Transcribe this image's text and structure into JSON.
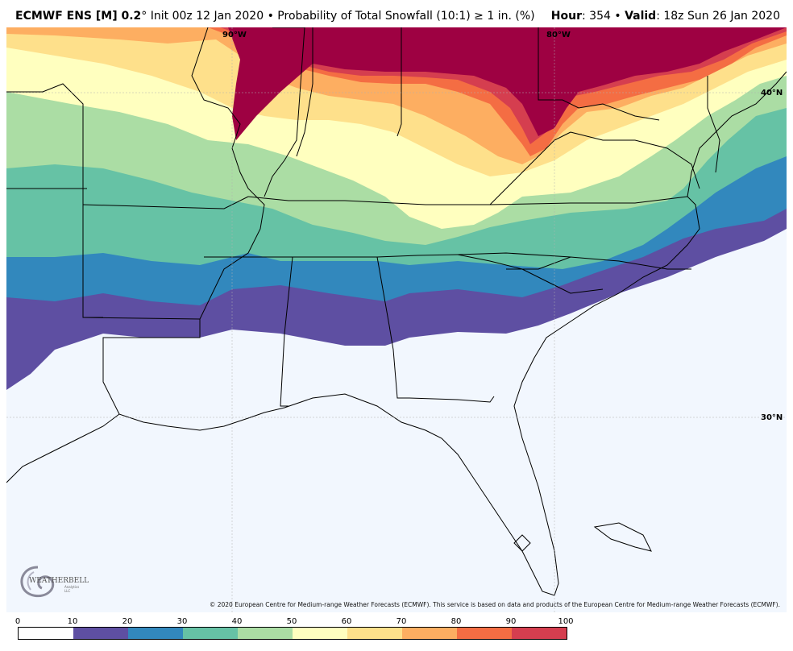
{
  "header": {
    "model": "ECMWF ENS [M] 0.2",
    "degree": "°",
    "init": " Init 00z 12 Jan 2020",
    "bullet": " • ",
    "product": "Probability of Total Snowfall (10:1) ≥ 1 in. (%)",
    "hour_label": "Hour",
    "hour_value": ": 354",
    "valid_label": "Valid",
    "valid_value": ": 18z Sun 26 Jan 2020"
  },
  "map": {
    "lon_labels": [
      "90°W",
      "80°W"
    ],
    "lat_labels": [
      "40°N",
      "30°N"
    ],
    "ocean_color": "#f2f7fe",
    "line_color": "#000000"
  },
  "credit": "© 2020 European Centre for Medium-range Weather Forecasts (ECMWF). This service is based on data and products of the European Centre for Medium-range Weather Forecasts (ECMWF).",
  "logo": {
    "text": "WEATHERBELL",
    "sub": "Analytics LLC",
    "icon": "swirl-logo-icon"
  },
  "legend": {
    "ticks": [
      "0",
      "10",
      "20",
      "30",
      "40",
      "50",
      "60",
      "70",
      "80",
      "90",
      "100"
    ],
    "colors": [
      "#ffffff",
      "#5e4fa2",
      "#3288bd",
      "#66c2a5",
      "#abdda4",
      "#ffffbf",
      "#fee08b",
      "#fdae61",
      "#f46d43",
      "#d53e4f",
      "#9e0142"
    ]
  }
}
